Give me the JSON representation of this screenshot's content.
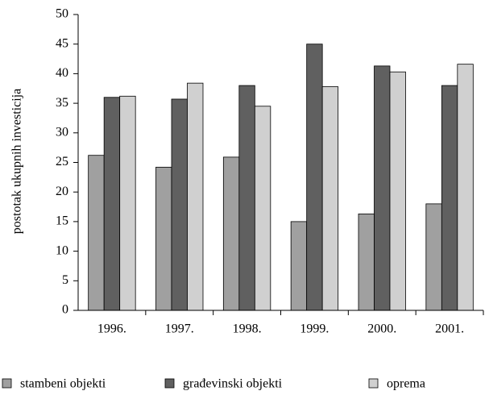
{
  "chart_data": {
    "type": "bar",
    "y_label": "postotak ukupnih investicija",
    "categories": [
      "1996.",
      "1997.",
      "1998.",
      "1999.",
      "2000.",
      "2001."
    ],
    "series": [
      {
        "name": "stambeni objekti",
        "color": "#a0a0a0",
        "values": [
          26.2,
          24.2,
          25.9,
          15,
          16.3,
          18
        ]
      },
      {
        "name": "građevinski objekti",
        "color": "#606060",
        "values": [
          36,
          35.7,
          38,
          45,
          41.3,
          38
        ]
      },
      {
        "name": "oprema",
        "color": "#d0d0d0",
        "values": [
          36.2,
          38.4,
          34.5,
          37.8,
          40.3,
          41.6
        ]
      }
    ],
    "ylim": [
      0,
      50
    ],
    "yticks": [
      0,
      5,
      10,
      15,
      20,
      25,
      30,
      35,
      40,
      45,
      50
    ],
    "grid": false,
    "legend": "bottom"
  }
}
